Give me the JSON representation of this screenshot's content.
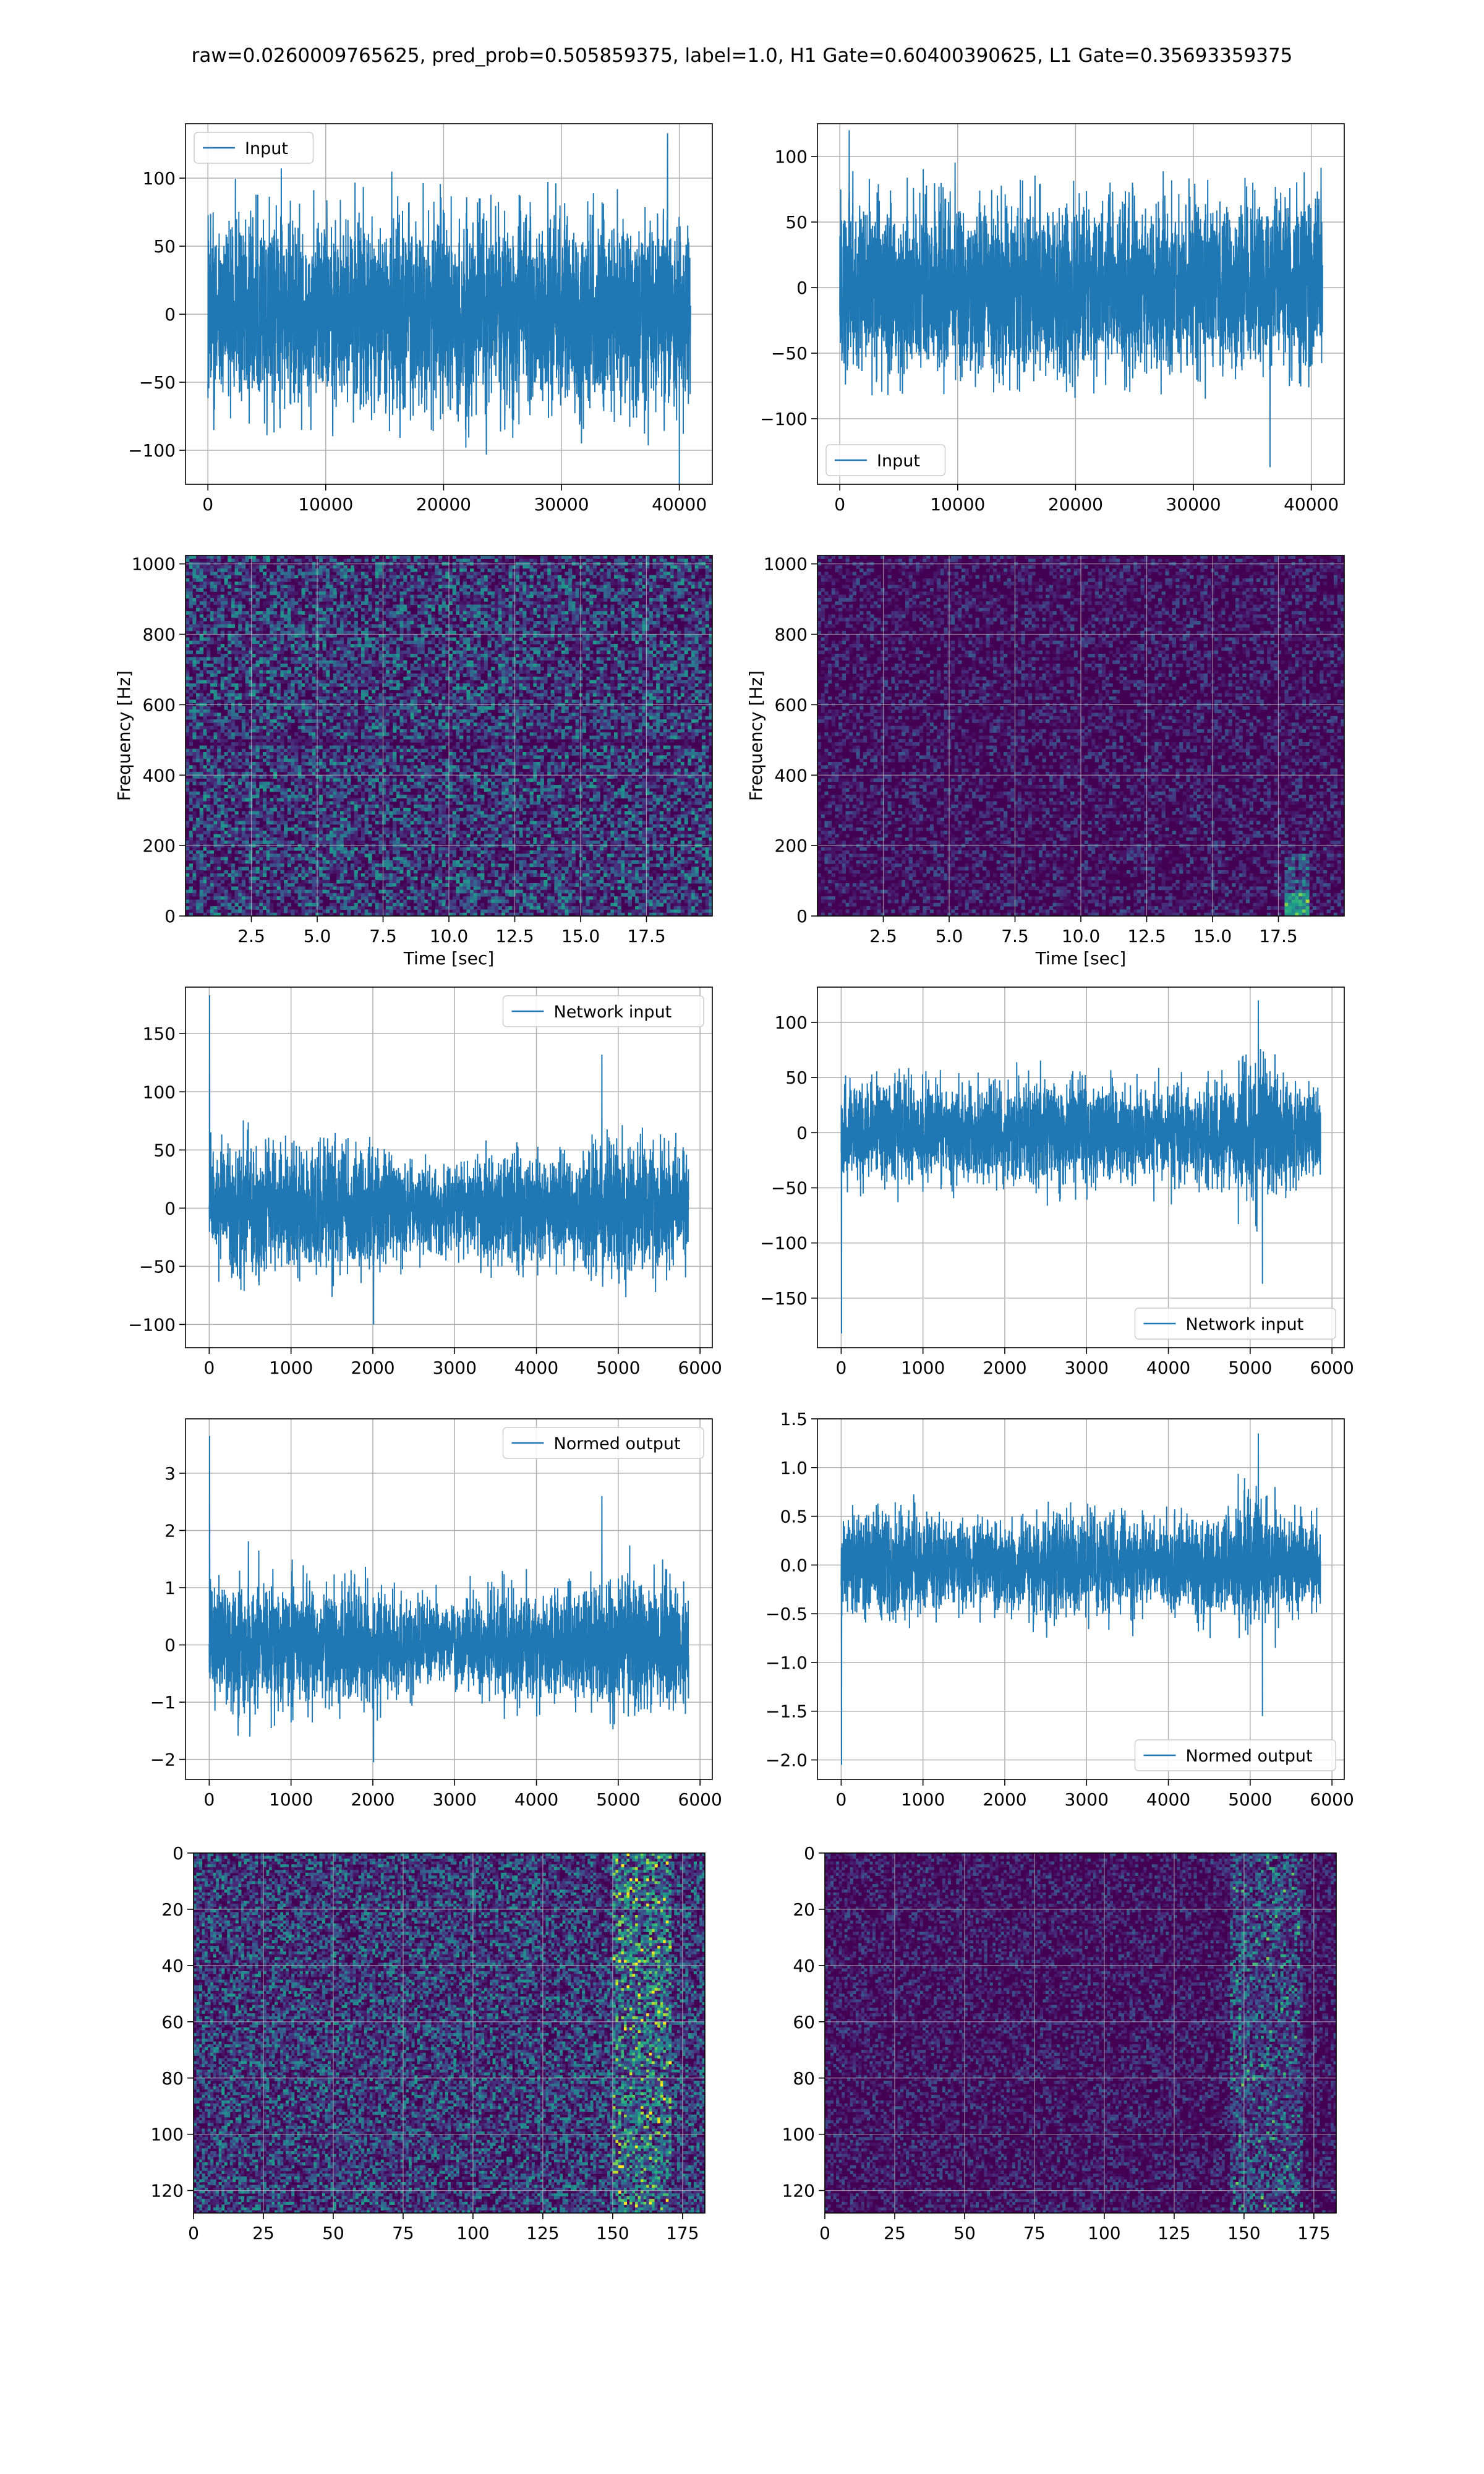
{
  "figure": {
    "title": "raw=0.0260009765625, pred_prob=0.505859375, label=1.0, H1 Gate=0.60400390625, L1 Gate=0.35693359375"
  },
  "colors": {
    "line": "#1f77b4",
    "grid": "#b0b0b0",
    "viridis_dark": "#440154"
  },
  "chart_data": [
    {
      "id": "input-h1",
      "type": "line",
      "ylim": [
        -125,
        140
      ],
      "xlim": [
        -1900,
        42800
      ],
      "xticks": [
        0,
        10000,
        20000,
        30000,
        40000
      ],
      "yticks": [
        -100,
        -50,
        0,
        50,
        100
      ],
      "grid": true,
      "legend": "upper-left",
      "series": [
        {
          "name": "Input",
          "n": 40960,
          "amp": 30,
          "envelope": "flat",
          "peaks": [
            {
              "x": 39000,
              "y": 133
            },
            {
              "x": 40000,
              "y": -128
            }
          ]
        }
      ]
    },
    {
      "id": "input-l1",
      "type": "line",
      "ylim": [
        -150,
        125
      ],
      "xlim": [
        -1900,
        42800
      ],
      "xticks": [
        0,
        10000,
        20000,
        30000,
        40000
      ],
      "yticks": [
        -100,
        -50,
        0,
        50,
        100
      ],
      "grid": true,
      "legend": "lower-left",
      "series": [
        {
          "name": "Input",
          "n": 40960,
          "amp": 28,
          "envelope": "flat",
          "peaks": [
            {
              "x": 800,
              "y": 120
            },
            {
              "x": 36500,
              "y": -137
            }
          ]
        }
      ]
    },
    {
      "id": "spectrogram-h1",
      "type": "heatmap",
      "xlim": [
        0,
        20
      ],
      "ylim": [
        0,
        1024
      ],
      "xticks": [
        2.5,
        5.0,
        7.5,
        10.0,
        12.5,
        15.0,
        17.5
      ],
      "yticks": [
        0,
        200,
        400,
        600,
        800,
        1000
      ],
      "xlabel": "Time [sec]",
      "ylabel": "Frequency [Hz]",
      "grid": true,
      "level": "high"
    },
    {
      "id": "spectrogram-l1",
      "type": "heatmap",
      "xlim": [
        0,
        20
      ],
      "ylim": [
        0,
        1024
      ],
      "xticks": [
        2.5,
        5.0,
        7.5,
        10.0,
        12.5,
        15.0,
        17.5
      ],
      "yticks": [
        0,
        200,
        400,
        600,
        800,
        1000
      ],
      "xlabel": "Time [sec]",
      "ylabel": "Frequency [Hz]",
      "grid": true,
      "level": "low"
    },
    {
      "id": "network-input-h1",
      "type": "line",
      "ylim": [
        -120,
        190
      ],
      "xlim": [
        -290,
        6150
      ],
      "xticks": [
        0,
        1000,
        2000,
        3000,
        4000,
        5000,
        6000
      ],
      "yticks": [
        -100,
        -50,
        0,
        50,
        100,
        150
      ],
      "grid": true,
      "legend": "upper-right",
      "series": [
        {
          "name": "Network input",
          "n": 5860,
          "amp": 22,
          "envelope": "wavy",
          "peaks": [
            {
              "x": 5,
              "y": 183
            },
            {
              "x": 4800,
              "y": 132
            },
            {
              "x": 2010,
              "y": -100
            }
          ]
        }
      ]
    },
    {
      "id": "network-input-l1",
      "type": "line",
      "ylim": [
        -195,
        132
      ],
      "xlim": [
        -290,
        6150
      ],
      "xticks": [
        0,
        1000,
        2000,
        3000,
        4000,
        5000,
        6000
      ],
      "yticks": [
        -150,
        -100,
        -50,
        0,
        50,
        100
      ],
      "grid": true,
      "legend": "lower-right",
      "series": [
        {
          "name": "Network input",
          "n": 5860,
          "amp": 20,
          "envelope": "burst",
          "peaks": [
            {
              "x": 5,
              "y": -182
            },
            {
              "x": 5100,
              "y": 120
            },
            {
              "x": 5150,
              "y": -137
            }
          ]
        }
      ]
    },
    {
      "id": "normed-output-h1",
      "type": "line",
      "ylim": [
        -2.35,
        3.95
      ],
      "xlim": [
        -290,
        6150
      ],
      "xticks": [
        0,
        1000,
        2000,
        3000,
        4000,
        5000,
        6000
      ],
      "yticks": [
        -2,
        -1,
        0,
        1,
        2,
        3
      ],
      "grid": true,
      "legend": "upper-right",
      "series": [
        {
          "name": "Normed output",
          "n": 5860,
          "amp": 0.45,
          "envelope": "wavy",
          "peaks": [
            {
              "x": 5,
              "y": 3.65
            },
            {
              "x": 4800,
              "y": 2.6
            },
            {
              "x": 2010,
              "y": -2.05
            }
          ]
        }
      ]
    },
    {
      "id": "normed-output-l1",
      "type": "line",
      "ylim": [
        -2.2,
        1.5
      ],
      "xlim": [
        -290,
        6150
      ],
      "xticks": [
        0,
        1000,
        2000,
        3000,
        4000,
        5000,
        6000
      ],
      "yticks": [
        -2.0,
        -1.5,
        -1.0,
        -0.5,
        0.0,
        0.5,
        1.0,
        1.5
      ],
      "grid": true,
      "legend": "lower-right",
      "series": [
        {
          "name": "Normed output",
          "n": 5860,
          "amp": 0.22,
          "envelope": "burst",
          "peaks": [
            {
              "x": 5,
              "y": -2.05
            },
            {
              "x": 5100,
              "y": 1.35
            },
            {
              "x": 5150,
              "y": -1.55
            }
          ]
        }
      ]
    },
    {
      "id": "feature-map-h1",
      "type": "heatmap",
      "xlim": [
        0,
        183
      ],
      "ylim": [
        0,
        128
      ],
      "rows": 128,
      "cols": 183,
      "xticks": [
        0,
        25,
        50,
        75,
        100,
        125,
        150,
        175
      ],
      "yticks": [
        0,
        20,
        40,
        60,
        80,
        100,
        120
      ],
      "grid": true,
      "level": "high",
      "hot_band": [
        150,
        170
      ]
    },
    {
      "id": "feature-map-l1",
      "type": "heatmap",
      "xlim": [
        0,
        183
      ],
      "ylim": [
        0,
        128
      ],
      "rows": 128,
      "cols": 183,
      "xticks": [
        0,
        25,
        50,
        75,
        100,
        125,
        150,
        175
      ],
      "yticks": [
        0,
        20,
        40,
        60,
        80,
        100,
        120
      ],
      "grid": true,
      "level": "low",
      "hot_band": [
        145,
        170
      ]
    }
  ]
}
